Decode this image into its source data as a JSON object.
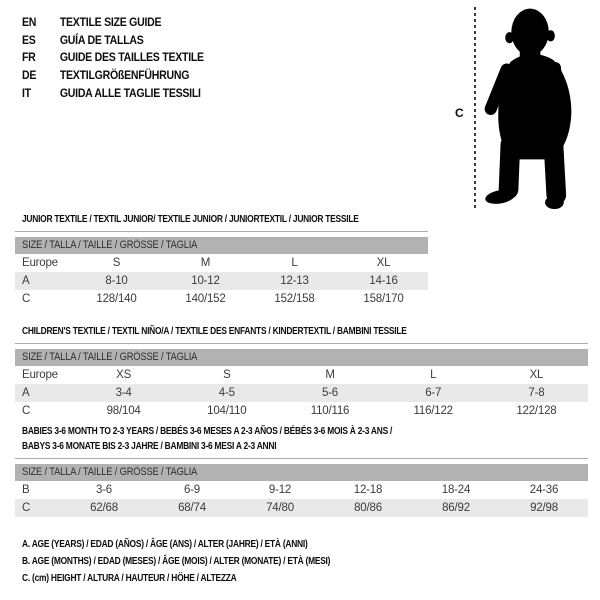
{
  "colors": {
    "header_bar": "#b2b2b2",
    "shaded_row": "#e9e9e9",
    "rule": "#ababab",
    "silhouette": "#000000"
  },
  "language_guide": {
    "items": [
      {
        "code": "EN",
        "label": "TEXTILE SIZE GUIDE"
      },
      {
        "code": "ES",
        "label": "GUÍA DE TALLAS"
      },
      {
        "code": "FR",
        "label": "GUIDE DES TAILLES TEXTILE"
      },
      {
        "code": "DE",
        "label": "TEXTILGRÖßENFÜHRUNG"
      },
      {
        "code": "IT",
        "label": "GUIDA ALLE TAGLIE TESSILI"
      }
    ]
  },
  "figure": {
    "icon": "baby-silhouette-icon",
    "measure_label": "C"
  },
  "tables": [
    {
      "id": "junior",
      "title_lines": [
        "JUNIOR TEXTILE / TEXTIL JUNIOR/ TEXTILE JUNIOR / JUNIORTEXTIL / JUNIOR TESSILE"
      ],
      "header": "SIZE / TALLA / TAILLE / GRÖSSE / TAGLIA",
      "rows": [
        {
          "label": "Europe",
          "cells": [
            "S",
            "M",
            "L",
            "XL"
          ],
          "shaded": false
        },
        {
          "label": "A",
          "cells": [
            "8-10",
            "10-12",
            "12-13",
            "14-16"
          ],
          "shaded": true
        },
        {
          "label": "C",
          "cells": [
            "128/140",
            "140/152",
            "152/158",
            "158/170"
          ],
          "shaded": false
        }
      ]
    },
    {
      "id": "children",
      "title_lines": [
        "CHILDREN'S TEXTILE / TEXTIL NIÑO/A / TEXTILE DES ENFANTS / KINDERTEXTIL / BAMBINI TESSILE"
      ],
      "header": "SIZE / TALLA / TAILLE / GRÖSSE / TAGLIA",
      "rows": [
        {
          "label": "Europe",
          "cells": [
            "XS",
            "S",
            "M",
            "L",
            "XL"
          ],
          "shaded": false
        },
        {
          "label": "A",
          "cells": [
            "3-4",
            "4-5",
            "5-6",
            "6-7",
            "7-8"
          ],
          "shaded": true
        },
        {
          "label": "C",
          "cells": [
            "98/104",
            "104/110",
            "110/116",
            "116/122",
            "122/128"
          ],
          "shaded": false
        }
      ]
    },
    {
      "id": "babies",
      "title_lines": [
        "BABIES 3-6 MONTH TO 2-3 YEARS / BEBÉS 3-6 MESES A 2-3 AÑOS / BÉBÉS 3-6 MOIS À 2-3 ANS /",
        "BABYS 3-6 MONATE BIS 2-3 JAHRE / BAMBINI 3-6 MESI A 2-3 ANNI"
      ],
      "header": "SIZE / TALLA / TAILLE / GRÖSSE / TAGLIA",
      "rows": [
        {
          "label": "B",
          "cells": [
            "3-6",
            "6-9",
            "9-12",
            "12-18",
            "18-24",
            "24-36"
          ],
          "shaded": false
        },
        {
          "label": "C",
          "cells": [
            "62/68",
            "68/74",
            "74/80",
            "80/86",
            "86/92",
            "92/98"
          ],
          "shaded": true
        }
      ]
    }
  ],
  "footnotes": [
    "A. AGE (YEARS) / EDAD (AÑOS) / ÂGE (ANS) / ALTER (JAHRE) / ETÀ (ANNI)",
    "B. AGE (MONTHS) / EDAD (MESES) / ÂGE (MOIS) / ALTER (MONATE) / ETÀ (MESI)",
    "C. (cm) HEIGHT / ALTURA / HAUTEUR / HÖHE / ALTEZZA"
  ]
}
